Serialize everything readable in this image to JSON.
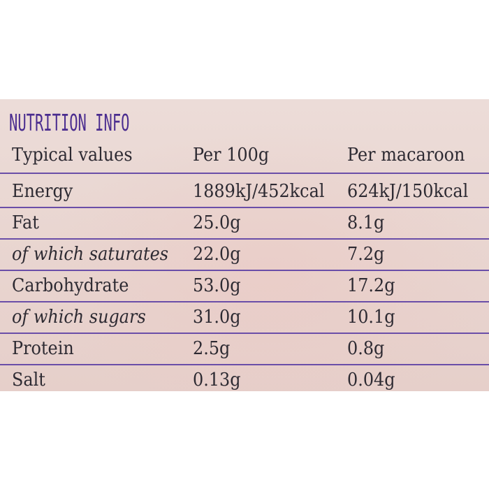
{
  "title": "NUTRITION INFO",
  "header": {
    "col1": "Typical values",
    "col2": "Per 100g",
    "col3": "Per macaroon"
  },
  "rows": [
    {
      "name": "Energy",
      "per100": "1889kJ/452kcal",
      "perItem": "624kJ/150kcal"
    },
    {
      "name": "Fat",
      "per100": "25.0g",
      "perItem": "8.1g"
    },
    {
      "name": "of which saturates",
      "per100": "22.0g",
      "perItem": "7.2g"
    },
    {
      "name": "Carbohydrate",
      "per100": "53.0g",
      "perItem": "17.2g"
    },
    {
      "name": "of which sugars",
      "per100": "31.0g",
      "perItem": "10.1g"
    },
    {
      "name": "Protein",
      "per100": "2.5g",
      "perItem": "0.8g"
    },
    {
      "name": "Salt",
      "per100": "0.13g",
      "perItem": "0.04g"
    }
  ],
  "colors": {
    "title": "#4a2c8f",
    "rule": "#6a4ea8",
    "text": "#2d2a32",
    "label_bg": "#e9d6d1"
  }
}
